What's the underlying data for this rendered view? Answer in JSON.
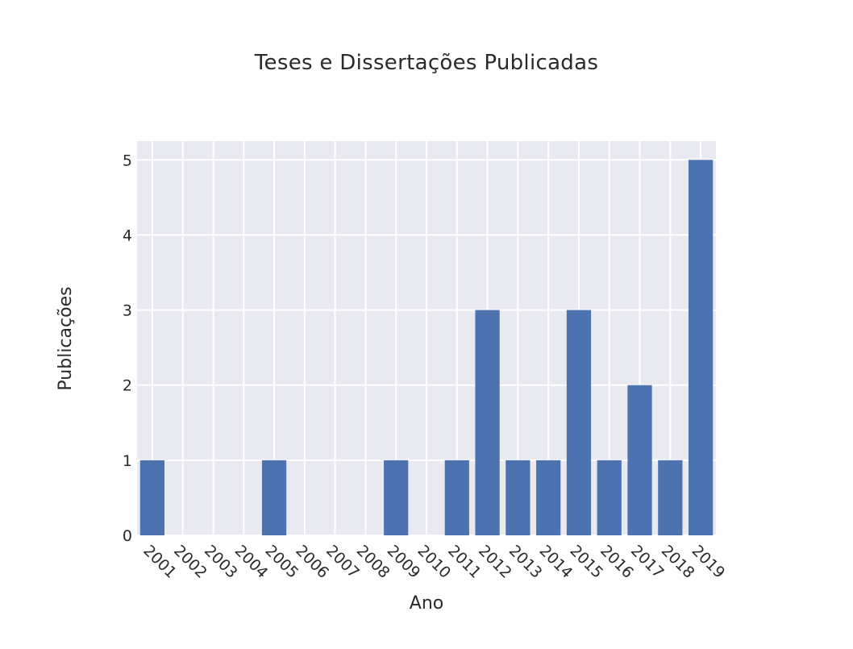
{
  "chart_data": {
    "type": "bar",
    "title": "Teses e Dissertações Publicadas",
    "xlabel": "Ano",
    "ylabel": "Publicações",
    "categories": [
      "2001",
      "2002",
      "2003",
      "2004",
      "2005",
      "2006",
      "2007",
      "2008",
      "2009",
      "2010",
      "2011",
      "2012",
      "2013",
      "2014",
      "2015",
      "2016",
      "2017",
      "2018",
      "2019"
    ],
    "values": [
      1,
      0,
      0,
      0,
      1,
      0,
      0,
      0,
      1,
      0,
      1,
      3,
      1,
      1,
      3,
      1,
      2,
      1,
      5
    ],
    "ylim": [
      0,
      5.25
    ],
    "yticks": [
      0,
      1,
      2,
      3,
      4,
      5
    ],
    "grid": true,
    "colors": {
      "bar": "#4c72b0",
      "plot_background": "#e9e9f2",
      "grid": "#ffffff"
    }
  }
}
